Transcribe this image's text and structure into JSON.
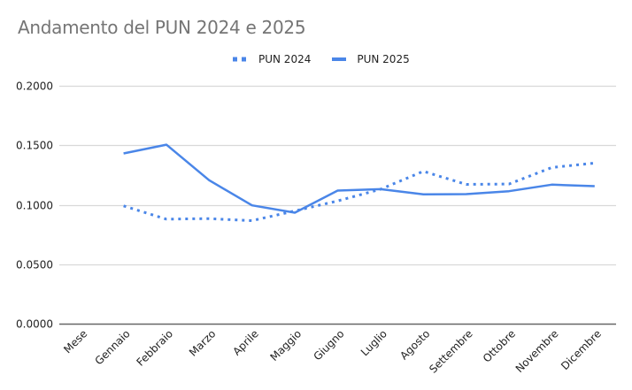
{
  "chart_data": {
    "type": "line",
    "title": "Andamento del PUN 2024 e 2025",
    "xlabel": "",
    "ylabel": "",
    "categories": [
      "Mese",
      "Gennaio",
      "Febbraio",
      "Marzo",
      "Aprile",
      "Maggio",
      "Giugno",
      "Luglio",
      "Agosto",
      "Settembre",
      "Ottobre",
      "Novembre",
      "Dicembre"
    ],
    "series": [
      {
        "name": "PUN 2024",
        "style": "dotted",
        "color": "#4a86e8",
        "values": [
          null,
          0.099,
          0.0879,
          0.0883,
          0.0866,
          0.0948,
          0.1032,
          0.113,
          0.1281,
          0.1171,
          0.1174,
          0.1313,
          0.135
        ]
      },
      {
        "name": "PUN 2025",
        "style": "solid",
        "color": "#4a86e8",
        "values": [
          null,
          0.1431,
          0.1505,
          0.1206,
          0.0995,
          0.0933,
          0.1119,
          0.1131,
          0.1087,
          0.1089,
          0.1114,
          0.1169,
          0.1156
        ]
      }
    ],
    "yticks": [
      "0.0000",
      "0.0500",
      "0.1000",
      "0.1500",
      "0.2000"
    ],
    "ylim": [
      0,
      0.2
    ],
    "grid": true,
    "legend_position": "top"
  },
  "legend": {
    "items": [
      {
        "label": "PUN 2024"
      },
      {
        "label": "PUN 2025"
      }
    ]
  }
}
